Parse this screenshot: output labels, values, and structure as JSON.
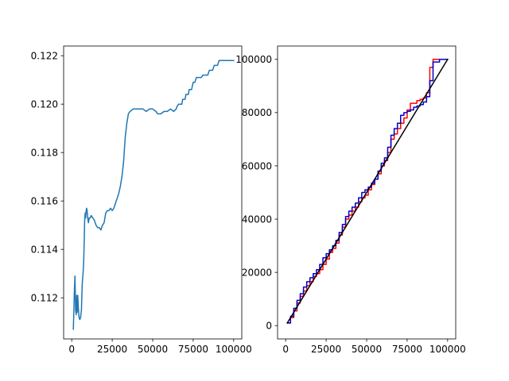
{
  "chart_data": [
    {
      "type": "line",
      "title": "",
      "xlabel": "",
      "ylabel": "",
      "xlim": [
        -5000,
        105000
      ],
      "ylim": [
        0.1103,
        0.1224
      ],
      "grid": false,
      "legend": "none",
      "xticks": [
        0,
        25000,
        50000,
        75000,
        100000
      ],
      "xtick_labels": [
        "0",
        "25000",
        "50000",
        "75000",
        "100000"
      ],
      "yticks": [
        0.112,
        0.114,
        0.116,
        0.118,
        0.12,
        0.122
      ],
      "ytick_labels": [
        "0.112",
        "0.114",
        "0.116",
        "0.118",
        "0.120",
        "0.122"
      ],
      "series": [
        {
          "color": "#1f77b4",
          "step": false,
          "x": [
            1000,
            1300,
            1600,
            2000,
            2400,
            2800,
            3100,
            3400,
            3700,
            4100,
            4500,
            5000,
            5500,
            6000,
            6500,
            7000,
            7400,
            7700,
            8000,
            8300,
            8600,
            8900,
            9200,
            9500,
            9900,
            10300,
            10800,
            11500,
            12000,
            13000,
            14000,
            15000,
            16000,
            17000,
            18000,
            19000,
            20000,
            21000,
            22000,
            23000,
            24000,
            25000,
            26000,
            27000,
            28000,
            29000,
            30000,
            31000,
            32000,
            33000,
            34000,
            35000,
            36000,
            38000,
            40000,
            42000,
            44000,
            46000,
            48000,
            50000,
            52000,
            53000,
            55000,
            57000,
            59000,
            61000,
            63000,
            64500,
            65000,
            66000,
            68000,
            68500,
            70000,
            70500,
            72000,
            72500,
            74000,
            75000,
            76000,
            77000,
            80000,
            81000,
            84000,
            85000,
            87000,
            88000,
            90000,
            91000,
            100000
          ],
          "y": [
            0.1107,
            0.1114,
            0.1122,
            0.1129,
            0.1115,
            0.1113,
            0.1121,
            0.1114,
            0.1121,
            0.1116,
            0.1112,
            0.1111,
            0.1112,
            0.1115,
            0.1126,
            0.113,
            0.1135,
            0.1143,
            0.1152,
            0.1155,
            0.1153,
            0.1156,
            0.1157,
            0.1156,
            0.1153,
            0.1151,
            0.1153,
            0.1153,
            0.1154,
            0.1153,
            0.1152,
            0.115,
            0.1149,
            0.1149,
            0.1148,
            0.115,
            0.1151,
            0.1155,
            0.1156,
            0.1156,
            0.1157,
            0.1156,
            0.1157,
            0.1159,
            0.1161,
            0.1163,
            0.1166,
            0.117,
            0.1176,
            0.1186,
            0.1192,
            0.1196,
            0.1197,
            0.1198,
            0.1198,
            0.1198,
            0.1198,
            0.1197,
            0.1198,
            0.1198,
            0.1197,
            0.1196,
            0.1196,
            0.1197,
            0.1197,
            0.1198,
            0.1197,
            0.1198,
            0.1199,
            0.12,
            0.12,
            0.1202,
            0.1202,
            0.1204,
            0.1204,
            0.1206,
            0.1206,
            0.1209,
            0.1209,
            0.1211,
            0.1211,
            0.1212,
            0.1212,
            0.1214,
            0.1214,
            0.1216,
            0.1216,
            0.1218,
            0.1218
          ]
        }
      ]
    },
    {
      "type": "line",
      "title": "",
      "xlabel": "",
      "ylabel": "",
      "xlim": [
        -5000,
        105000
      ],
      "ylim": [
        -5000,
        105000
      ],
      "grid": false,
      "legend": "none",
      "xticks": [
        0,
        25000,
        50000,
        75000,
        100000
      ],
      "xtick_labels": [
        "0",
        "25000",
        "50000",
        "75000",
        "100000"
      ],
      "yticks": [
        0,
        20000,
        40000,
        60000,
        80000,
        100000
      ],
      "ytick_labels": [
        "0",
        "20000",
        "40000",
        "60000",
        "80000",
        "100000"
      ],
      "series": [
        {
          "color": "#ff0000",
          "step": true,
          "x": [
            1000,
            3000,
            5000,
            7000,
            9000,
            11000,
            13000,
            15000,
            17000,
            19000,
            21000,
            23000,
            25000,
            27000,
            29000,
            31000,
            33000,
            35000,
            37000,
            39000,
            41000,
            43000,
            45000,
            47000,
            49000,
            51000,
            53000,
            55000,
            57000,
            59000,
            61000,
            63000,
            65000,
            67000,
            69000,
            71000,
            73000,
            75000,
            77000,
            79000,
            81000,
            83000,
            85000,
            87000,
            89000,
            91000,
            95000,
            100000
          ],
          "y": [
            1000,
            3000,
            5500,
            8500,
            11000,
            13000,
            15000,
            16500,
            18500,
            19500,
            21000,
            23000,
            25000,
            27500,
            29000,
            31000,
            34000,
            37000,
            40000,
            41500,
            43000,
            44500,
            46500,
            48000,
            49000,
            51000,
            53000,
            55000,
            57000,
            60000,
            62000,
            65000,
            70000,
            72000,
            74000,
            76000,
            78000,
            81000,
            83500,
            83500,
            84500,
            85000,
            85500,
            87500,
            97000,
            100000,
            100000,
            100000
          ]
        },
        {
          "color": "#0000cc",
          "step": true,
          "x": [
            1000,
            3000,
            5000,
            7000,
            9000,
            11000,
            13000,
            15000,
            17000,
            19000,
            21000,
            23000,
            25000,
            27000,
            29000,
            31000,
            33000,
            35000,
            37000,
            39000,
            41000,
            43000,
            45000,
            47000,
            49000,
            51000,
            53000,
            55000,
            57000,
            59000,
            61000,
            63000,
            65000,
            67000,
            69000,
            71000,
            73000,
            75000,
            77000,
            79000,
            81000,
            83000,
            85000,
            87000,
            89000,
            91000,
            95000,
            100000
          ],
          "y": [
            1000,
            3500,
            6500,
            9500,
            12000,
            14500,
            16500,
            18000,
            19500,
            21000,
            23000,
            25500,
            27000,
            28500,
            30000,
            32000,
            35000,
            38000,
            41000,
            43000,
            44500,
            46000,
            48000,
            50000,
            51000,
            52000,
            53500,
            55000,
            58000,
            61000,
            63000,
            67000,
            71500,
            74000,
            76000,
            79000,
            80000,
            80500,
            81000,
            82000,
            82500,
            83000,
            84000,
            86000,
            92000,
            99000,
            100000,
            100000
          ]
        },
        {
          "color": "#000000",
          "step": false,
          "x": [
            1000,
            100000
          ],
          "y": [
            1000,
            100000
          ]
        }
      ]
    }
  ]
}
